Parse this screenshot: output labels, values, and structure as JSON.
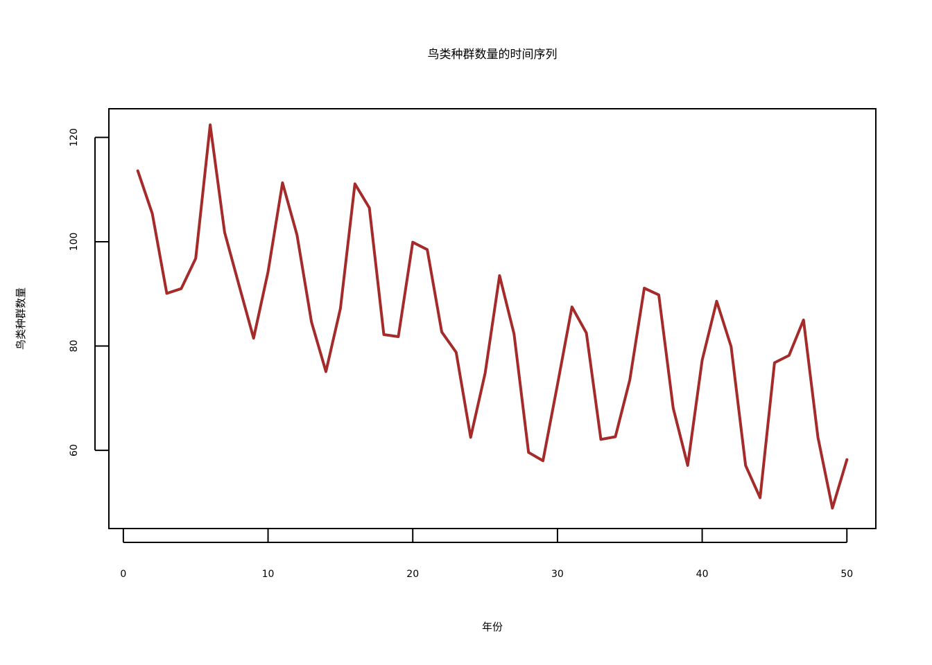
{
  "chart_data": {
    "type": "line",
    "title": "鸟类种群数量的时间序列",
    "xlabel": "年份",
    "ylabel": "鸟类种群数量",
    "xlim": [
      -1,
      52
    ],
    "ylim": [
      45,
      125.5
    ],
    "grid": false,
    "legend": "none",
    "line_color": "#a52a2a",
    "x_ticks": [
      0,
      10,
      20,
      30,
      40,
      50
    ],
    "y_ticks": [
      60,
      80,
      100,
      120
    ],
    "x_tick_labels": [
      "0",
      "10",
      "20",
      "30",
      "40",
      "50"
    ],
    "y_tick_labels": [
      "60",
      "80",
      "100",
      "120"
    ],
    "series": [
      {
        "name": "鸟类种群数量",
        "x": [
          1,
          2,
          3,
          4,
          5,
          6,
          7,
          8,
          9,
          10,
          11,
          12,
          13,
          14,
          15,
          16,
          17,
          18,
          19,
          20,
          21,
          22,
          23,
          24,
          25,
          26,
          27,
          28,
          29,
          30,
          31,
          32,
          33,
          34,
          35,
          36,
          37,
          38,
          39,
          40,
          41,
          42,
          43,
          44,
          45,
          46,
          47,
          48,
          49,
          50
        ],
        "values": [
          113.6,
          105.4,
          90.1,
          91.0,
          96.8,
          122.4,
          101.8,
          91.6,
          81.5,
          94.2,
          111.3,
          101.3,
          84.6,
          75.1,
          87.2,
          111.1,
          106.5,
          82.2,
          81.8,
          99.9,
          98.5,
          82.7,
          78.8,
          62.5,
          74.8,
          93.5,
          82.3,
          59.6,
          58.0,
          72.6,
          87.5,
          82.5,
          62.1,
          62.6,
          73.5,
          91.1,
          89.8,
          68.1,
          57.1,
          77.3,
          88.6,
          79.9,
          57.1,
          50.9,
          76.8,
          78.2,
          85.0,
          62.5,
          48.9,
          58.2
        ]
      }
    ]
  }
}
